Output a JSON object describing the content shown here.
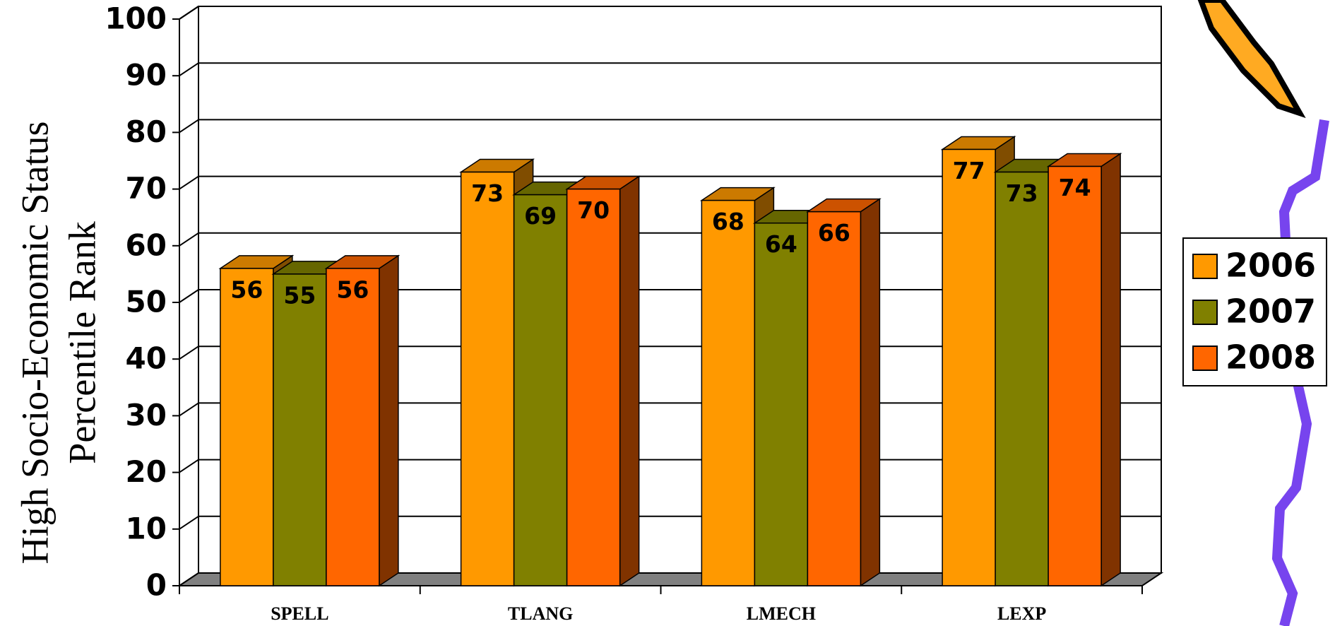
{
  "chart_data": {
    "type": "bar3d",
    "y_label": [
      "High Socio-Economic Status",
      "Percentile Rank"
    ],
    "categories": [
      "SPELL",
      "TLANG",
      "LMECH",
      "LEXP"
    ],
    "series": [
      {
        "name": "2006",
        "color": "#FF9900",
        "values": [
          56,
          73,
          68,
          77
        ]
      },
      {
        "name": "2007",
        "color": "#808000",
        "values": [
          55,
          69,
          64,
          73
        ]
      },
      {
        "name": "2008",
        "color": "#FF6600",
        "values": [
          56,
          70,
          66,
          74
        ]
      }
    ],
    "ylim": [
      0,
      100
    ],
    "yticks": [
      0,
      10,
      20,
      30,
      40,
      50,
      60,
      70,
      80,
      90,
      100
    ],
    "grid": true,
    "legend": "right"
  }
}
